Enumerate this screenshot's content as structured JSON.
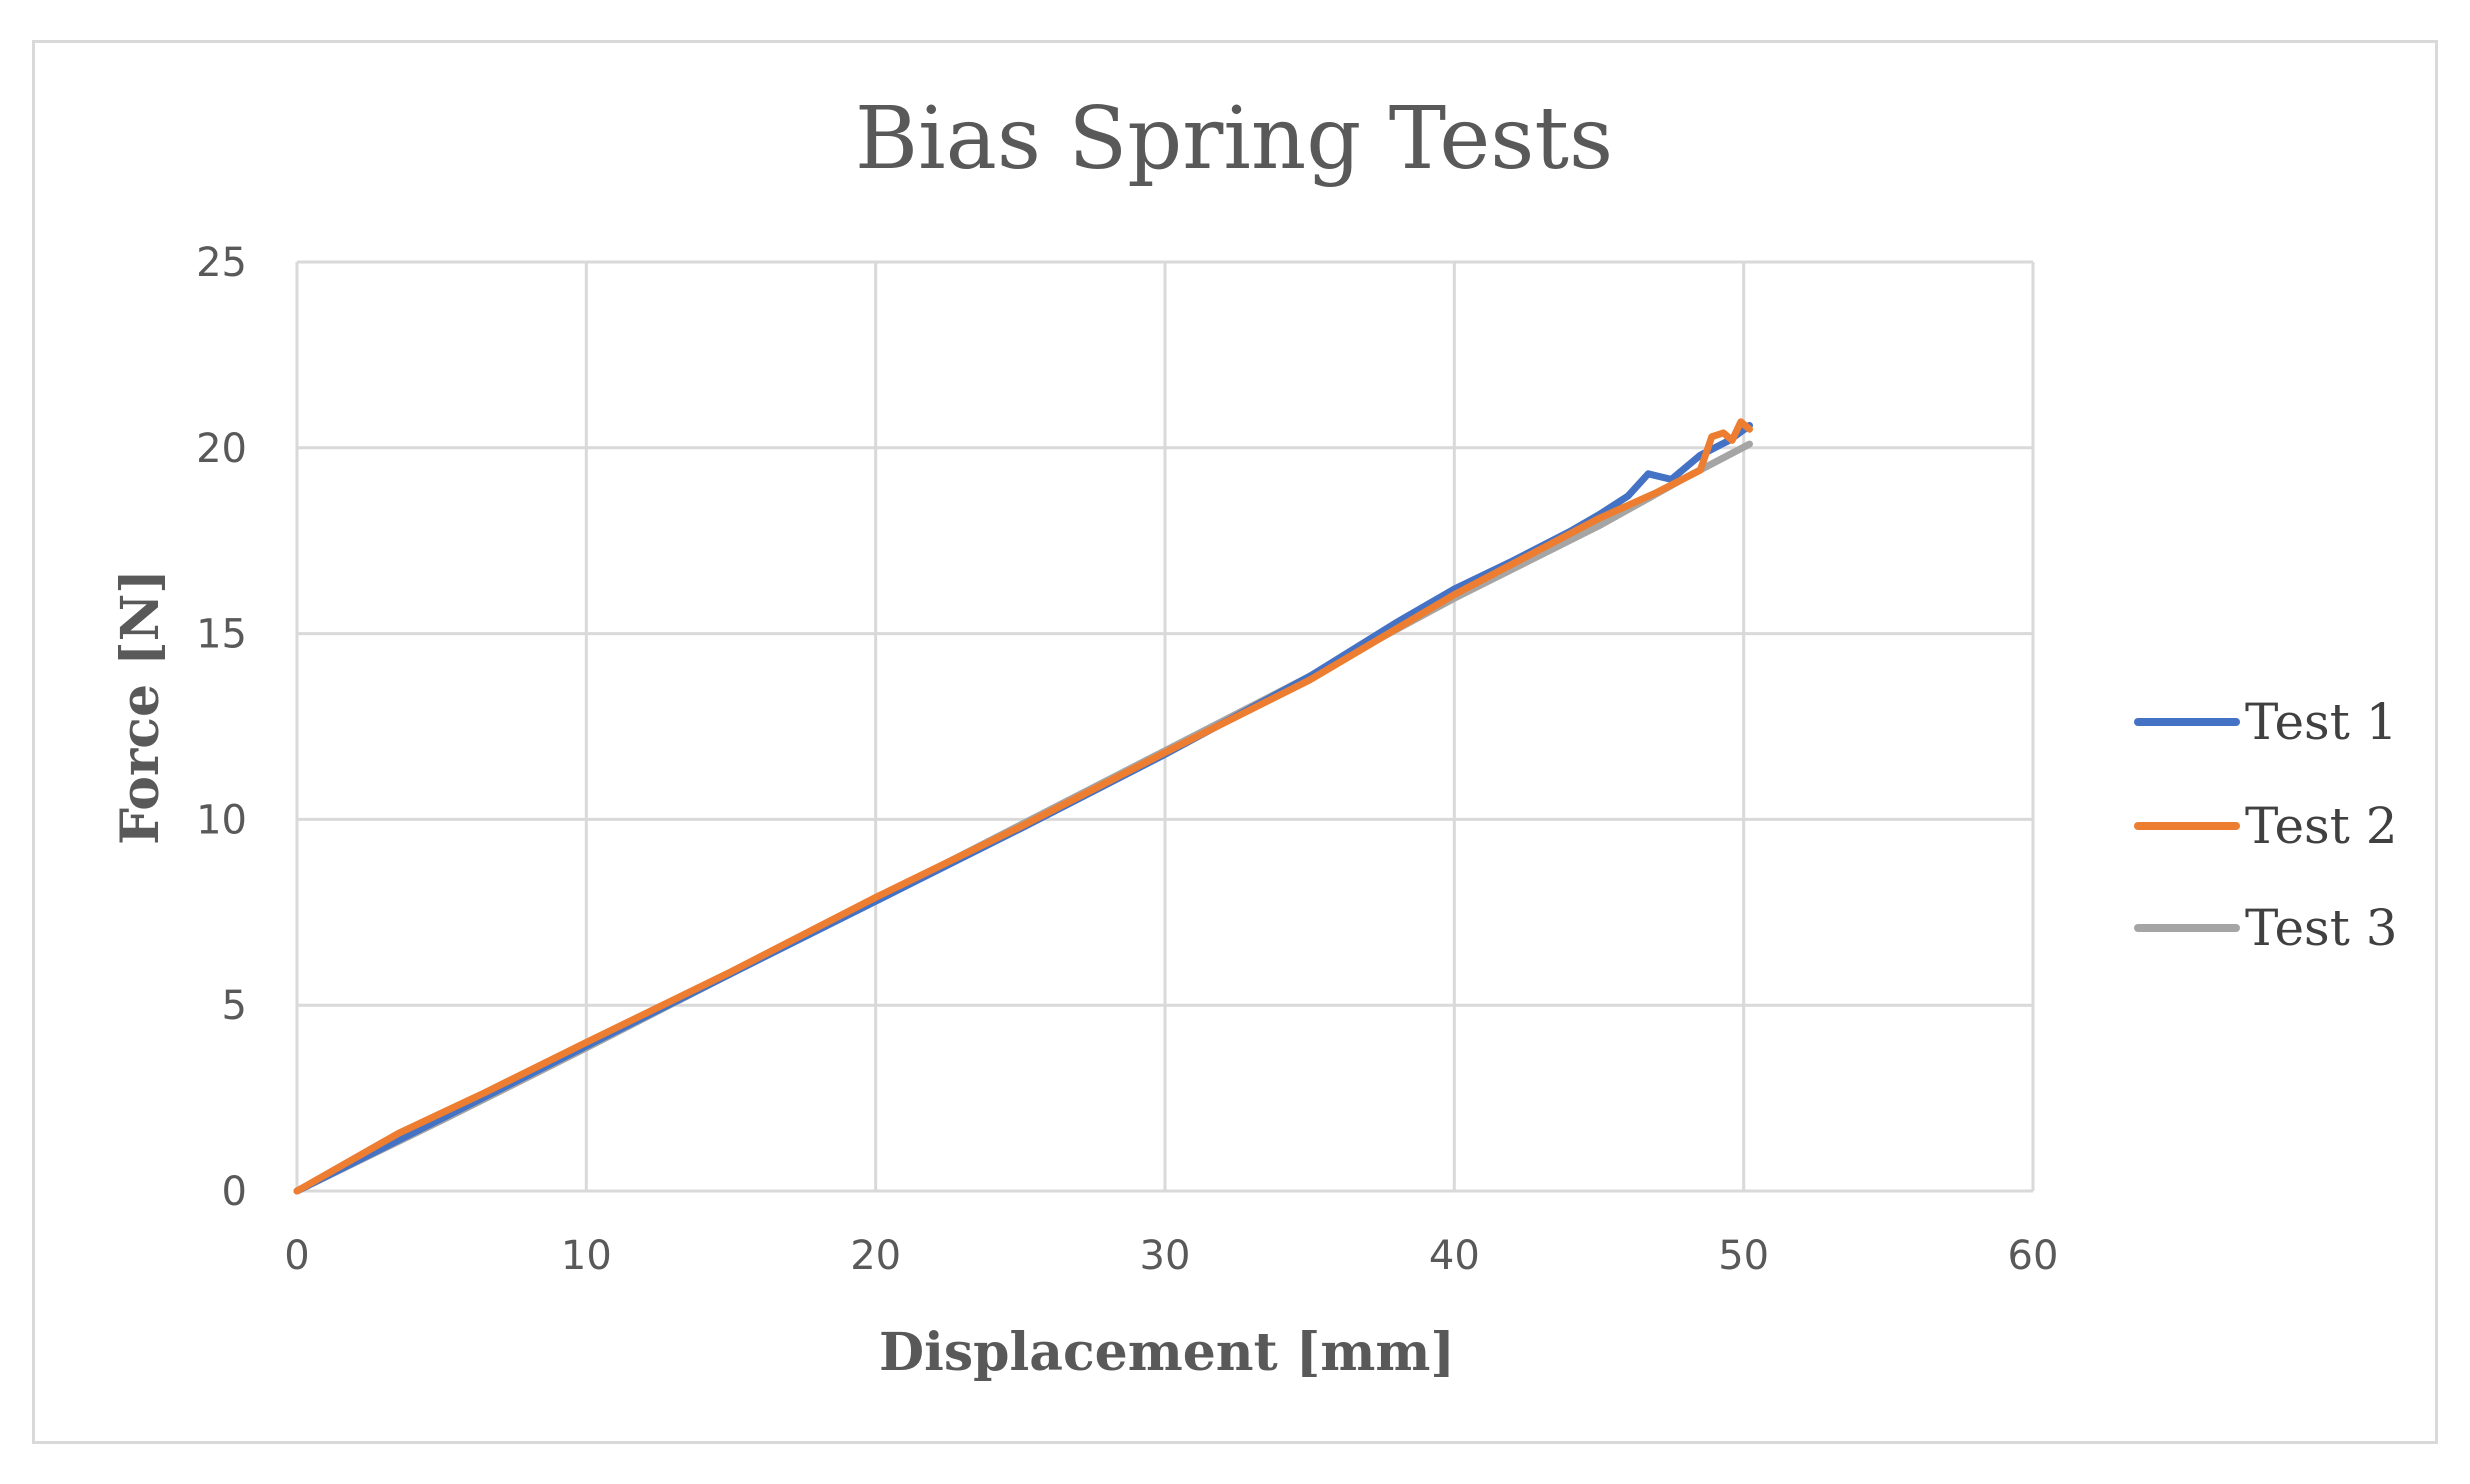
{
  "chart_data": {
    "type": "line",
    "title": "Bias Spring Tests",
    "xlabel": "Displacement [mm]",
    "ylabel": "Force [N]",
    "xlim": [
      0,
      60
    ],
    "ylim": [
      0,
      25
    ],
    "x_ticks": [
      0,
      10,
      20,
      30,
      40,
      50,
      60
    ],
    "y_ticks": [
      0,
      5,
      10,
      15,
      20,
      25
    ],
    "grid": true,
    "legend_position": "right",
    "series": [
      {
        "name": "Test 1",
        "color": "#4472c4",
        "points": [
          [
            0,
            0
          ],
          [
            5,
            1.95
          ],
          [
            10,
            3.9
          ],
          [
            15,
            5.85
          ],
          [
            20,
            7.8
          ],
          [
            25,
            9.75
          ],
          [
            30,
            11.75
          ],
          [
            35,
            13.85
          ],
          [
            38,
            15.3
          ],
          [
            40,
            16.2
          ],
          [
            42,
            16.95
          ],
          [
            44,
            17.75
          ],
          [
            45,
            18.2
          ],
          [
            46,
            18.7
          ],
          [
            46.7,
            19.3
          ],
          [
            47.5,
            19.15
          ],
          [
            48.5,
            19.8
          ],
          [
            49.5,
            20.2
          ],
          [
            50.2,
            20.6
          ]
        ]
      },
      {
        "name": "Test 2",
        "color": "#ed7d31",
        "points": [
          [
            0,
            0
          ],
          [
            3.5,
            1.55
          ],
          [
            6.5,
            2.65
          ],
          [
            10,
            4.0
          ],
          [
            15,
            5.9
          ],
          [
            20,
            7.9
          ],
          [
            25,
            9.8
          ],
          [
            30,
            11.8
          ],
          [
            35,
            13.75
          ],
          [
            40,
            16.05
          ],
          [
            45,
            18.1
          ],
          [
            47,
            18.8
          ],
          [
            48.5,
            19.4
          ],
          [
            48.9,
            20.3
          ],
          [
            49.3,
            20.4
          ],
          [
            49.6,
            20.2
          ],
          [
            49.9,
            20.7
          ],
          [
            50.2,
            20.5
          ]
        ]
      },
      {
        "name": "Test 3",
        "color": "#a5a5a5",
        "points": [
          [
            0,
            0
          ],
          [
            5,
            1.9
          ],
          [
            10,
            3.85
          ],
          [
            15,
            5.85
          ],
          [
            20,
            7.85
          ],
          [
            25,
            9.85
          ],
          [
            30,
            11.85
          ],
          [
            35,
            13.85
          ],
          [
            40,
            15.95
          ],
          [
            45,
            17.9
          ],
          [
            48,
            19.2
          ],
          [
            50.2,
            20.1
          ]
        ]
      }
    ]
  }
}
